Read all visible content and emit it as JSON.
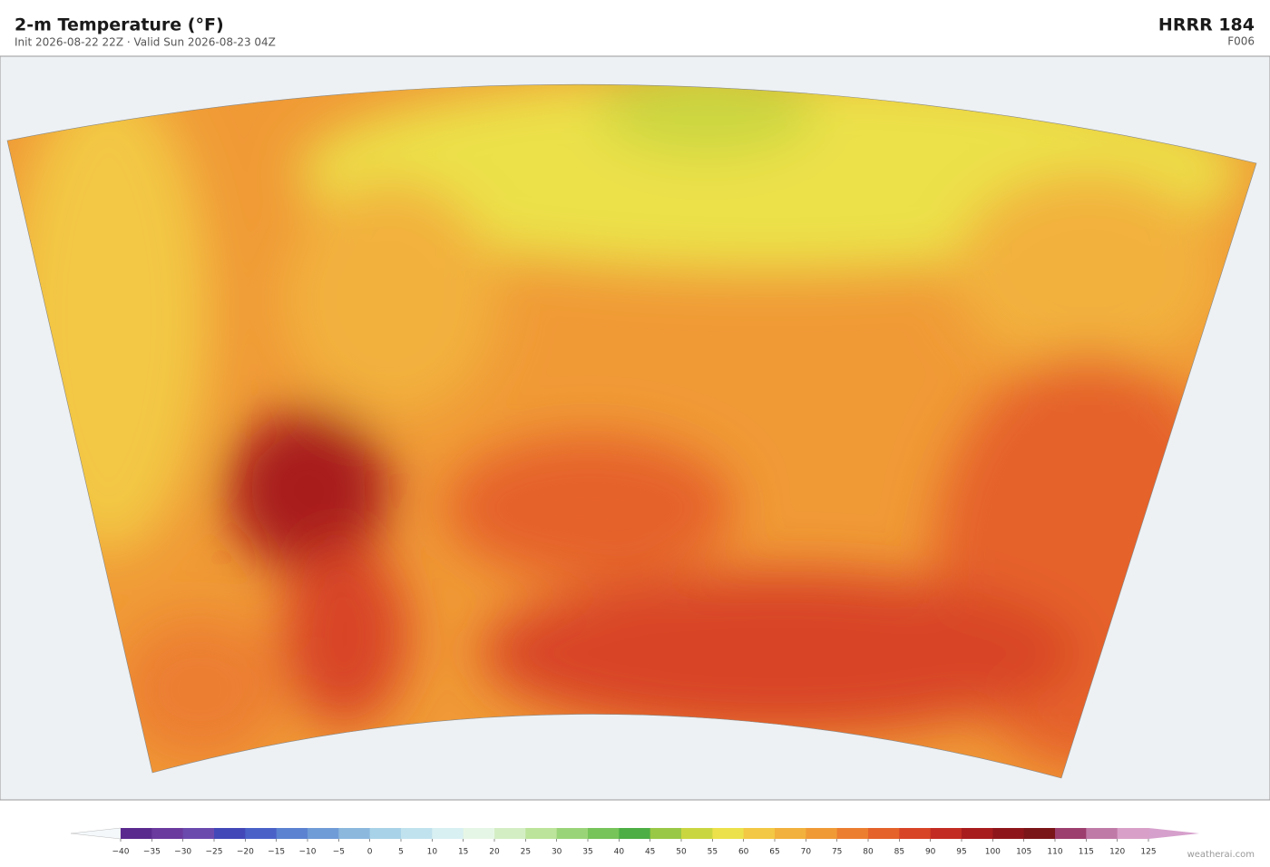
{
  "header": {
    "title": "2-m Temperature  (°F)",
    "subtitle": "Init 2026-08-22 22Z   ·   Valid Sun 2026-08-23 04Z",
    "model": "HRRR  184",
    "forecast_hour": "F006"
  },
  "colorbar": {
    "ticks": [
      {
        "value": -40,
        "label": "−40"
      },
      {
        "value": -35,
        "label": "−35"
      },
      {
        "value": -30,
        "label": "−30"
      },
      {
        "value": -25,
        "label": "−25"
      },
      {
        "value": -20,
        "label": "−20"
      },
      {
        "value": -15,
        "label": "−15"
      },
      {
        "value": -10,
        "label": "−10"
      },
      {
        "value": -5,
        "label": "−5"
      },
      0,
      5,
      10,
      15,
      20,
      25,
      30,
      35,
      40,
      45,
      50,
      55,
      60,
      65,
      70,
      75,
      80,
      85,
      90,
      95,
      100,
      105,
      110,
      115,
      120,
      125
    ],
    "colors": [
      "#5b2a8e",
      "#6a3a9e",
      "#6b4aae",
      "#4348b8",
      "#4a62c8",
      "#5b82d0",
      "#6f9bd6",
      "#8cb8de",
      "#a8d2e8",
      "#c0e2ee",
      "#d8f0f2",
      "#e6f6e6",
      "#d4eec4",
      "#bce49a",
      "#9ad478",
      "#76c45a",
      "#4cae44",
      "#98c846",
      "#cad640",
      "#ece14a",
      "#f3c844",
      "#f2b13c",
      "#f09a36",
      "#ec7e30",
      "#e5622a",
      "#d84426",
      "#c22c22",
      "#a81c1e",
      "#8e161a",
      "#7a1518",
      "#9c3e6e",
      "#c07aa8",
      "#d8a0c8"
    ],
    "under_color": "#f4f8fb",
    "over_color": "#d6a0cc"
  },
  "footer": {
    "credit": "weatherai.com"
  }
}
